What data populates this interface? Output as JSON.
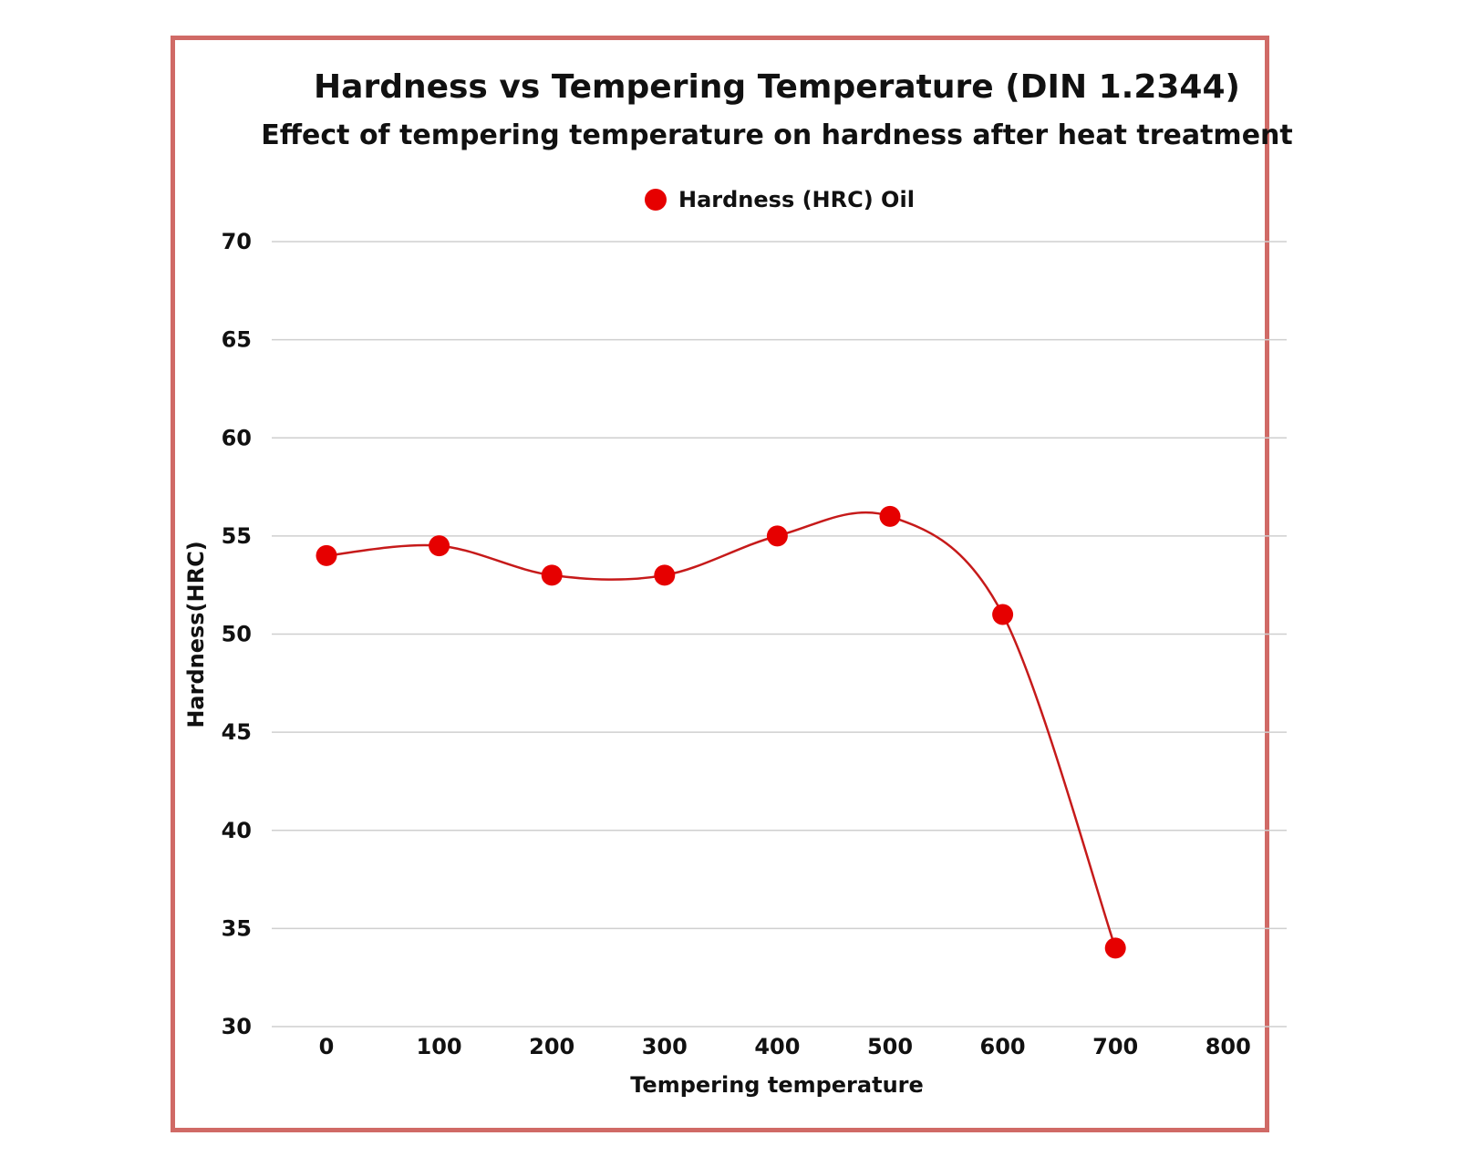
{
  "chart_data": {
    "type": "line",
    "title": "Hardness vs Tempering Temperature (DIN 1.2344)",
    "subtitle": "Effect of tempering temperature on hardness after heat treatment",
    "xlabel": "Tempering temperature",
    "ylabel": "Hardness(HRC)",
    "xlim": [
      -50,
      850
    ],
    "ylim": [
      30,
      70
    ],
    "x_ticks": [
      0,
      100,
      200,
      300,
      400,
      500,
      600,
      700,
      800
    ],
    "y_ticks": [
      30,
      35,
      40,
      45,
      50,
      55,
      60,
      65,
      70
    ],
    "grid": "horizontal",
    "legend_position": "top-center",
    "smooth": true,
    "series": [
      {
        "name": "Hardness (HRC) Oil",
        "color": "#e60000",
        "line_color": "#c61a1a",
        "x": [
          0,
          100,
          200,
          300,
          400,
          500,
          600,
          700
        ],
        "y": [
          54,
          54.5,
          53,
          53,
          55,
          56,
          51,
          34
        ]
      }
    ]
  }
}
